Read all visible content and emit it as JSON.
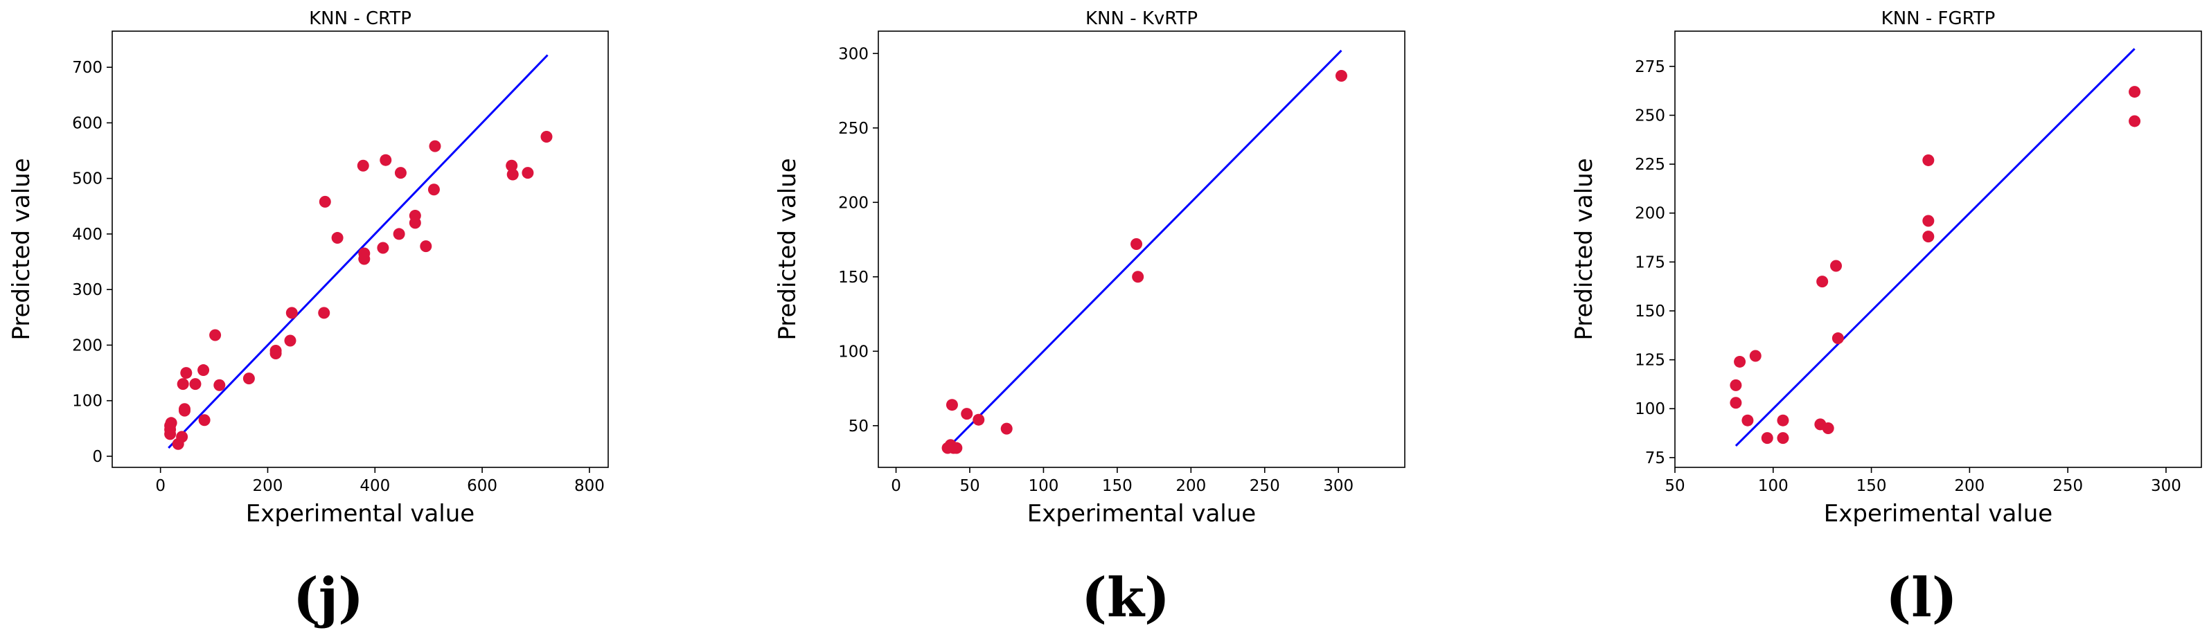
{
  "colors": {
    "point": "#dc143c",
    "line": "#0000ff",
    "axis": "#000000"
  },
  "chart_data": [
    {
      "type": "scatter",
      "title": "KNN - CRTP",
      "xlabel": "Experimental value",
      "ylabel": "Predicted value",
      "panel_label": "(j)",
      "xlim": [
        -90,
        835
      ],
      "ylim": [
        -20,
        765
      ],
      "xticks": [
        0,
        200,
        400,
        600,
        800
      ],
      "yticks": [
        0,
        100,
        200,
        300,
        400,
        500,
        600,
        700
      ],
      "xtick_labels": [
        "0",
        "200",
        "400",
        "600",
        "800"
      ],
      "ytick_labels": [
        "0",
        "100",
        "200",
        "300",
        "400",
        "500",
        "600",
        "700"
      ],
      "fit_line": {
        "x": [
          15,
          722
        ],
        "y": [
          15,
          722
        ]
      },
      "points": {
        "x": [
          18,
          18,
          18,
          20,
          33,
          40,
          42,
          45,
          45,
          48,
          65,
          80,
          82,
          102,
          110,
          165,
          215,
          215,
          242,
          245,
          305,
          307,
          330,
          378,
          380,
          380,
          415,
          420,
          445,
          448,
          475,
          475,
          495,
          510,
          512,
          655,
          657,
          685,
          720
        ],
        "y": [
          40,
          48,
          55,
          60,
          22,
          35,
          130,
          85,
          82,
          150,
          130,
          155,
          65,
          218,
          128,
          140,
          185,
          190,
          208,
          258,
          258,
          458,
          393,
          523,
          365,
          355,
          375,
          533,
          400,
          510,
          433,
          420,
          378,
          480,
          558,
          523,
          507,
          510,
          575
        ]
      }
    },
    {
      "type": "scatter",
      "title": "KNN - KvRTP",
      "xlabel": "Experimental value",
      "ylabel": "Predicted value",
      "panel_label": "(k)",
      "xlim": [
        -12,
        345
      ],
      "ylim": [
        22,
        315
      ],
      "xticks": [
        0,
        50,
        100,
        150,
        200,
        250,
        300
      ],
      "yticks": [
        50,
        100,
        150,
        200,
        250,
        300
      ],
      "xtick_labels": [
        "0",
        "50",
        "100",
        "150",
        "200",
        "250",
        "300"
      ],
      "ytick_labels": [
        "50",
        "100",
        "150",
        "200",
        "250",
        "300"
      ],
      "fit_line": {
        "x": [
          34,
          302
        ],
        "y": [
          34,
          302
        ]
      },
      "points": {
        "x": [
          35,
          37,
          39,
          41,
          38,
          48,
          56,
          75,
          163,
          164,
          302
        ],
        "y": [
          35,
          37,
          35,
          35,
          64,
          58,
          54,
          48,
          172,
          150,
          285
        ]
      }
    },
    {
      "type": "scatter",
      "title": "KNN - FGRTP",
      "xlabel": "Experimental value",
      "ylabel": "Predicted value",
      "panel_label": "(l)",
      "xlim": [
        50,
        318
      ],
      "ylim": [
        70,
        293
      ],
      "xticks": [
        50,
        100,
        150,
        200,
        250,
        300
      ],
      "yticks": [
        75,
        100,
        125,
        150,
        175,
        200,
        225,
        250,
        275
      ],
      "xtick_labels": [
        "50",
        "100",
        "150",
        "200",
        "250",
        "300"
      ],
      "ytick_labels": [
        "75",
        "100",
        "125",
        "150",
        "175",
        "200",
        "225",
        "250",
        "275"
      ],
      "fit_line": {
        "x": [
          81,
          284
        ],
        "y": [
          81,
          284
        ]
      },
      "points": {
        "x": [
          81,
          81,
          83,
          87,
          91,
          97,
          105,
          105,
          124,
          125,
          128,
          132,
          133,
          179,
          179,
          179,
          284,
          284
        ],
        "y": [
          112,
          103,
          124,
          94,
          127,
          85,
          85,
          94,
          92,
          165,
          90,
          173,
          136,
          227,
          196,
          188,
          262,
          247
        ]
      }
    }
  ]
}
